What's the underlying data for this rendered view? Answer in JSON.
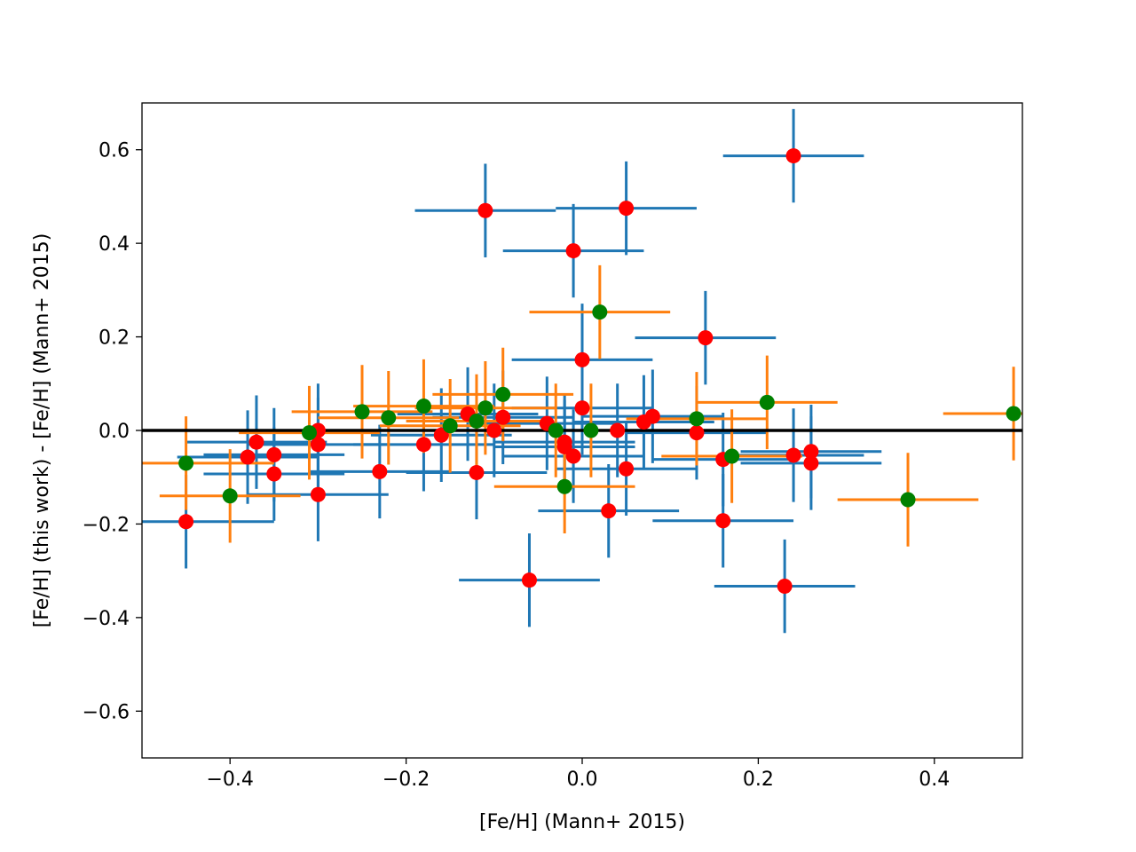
{
  "chart_data": {
    "type": "scatter",
    "title": "",
    "xlabel": "[Fe/H] (Mann+ 2015)",
    "ylabel": "[Fe/H] (this work) - [Fe/H] (Mann+ 2015)",
    "xlim": [
      -0.5,
      0.5
    ],
    "ylim": [
      -0.7,
      0.7
    ],
    "xticks": [
      -0.4,
      -0.2,
      0.0,
      0.2,
      0.4
    ],
    "xtick_labels": [
      "−0.4",
      "−0.2",
      "0.0",
      "0.2",
      "0.4"
    ],
    "yticks": [
      0.6,
      0.4,
      0.2,
      0.0,
      -0.2,
      -0.4,
      -0.6
    ],
    "ytick_labels": [
      "0.6",
      "0.4",
      "0.2",
      "0.0",
      "−0.2",
      "−0.4",
      "−0.6"
    ],
    "grid": false,
    "reference_line": {
      "y": 0.0,
      "color": "#000000"
    },
    "colors": {
      "blue_err": "#1f77b4",
      "orange_err": "#ff7f0e",
      "red_marker": "#ff0000",
      "green_marker": "#008000"
    },
    "series": [
      {
        "name": "red",
        "marker_color": "#ff0000",
        "errorbar_color": "#1f77b4",
        "points": [
          {
            "x": 0.24,
            "y": 0.587,
            "xerr": 0.08,
            "yerr": 0.1
          },
          {
            "x": -0.11,
            "y": 0.47,
            "xerr": 0.08,
            "yerr": 0.1
          },
          {
            "x": 0.05,
            "y": 0.475,
            "xerr": 0.08,
            "yerr": 0.1
          },
          {
            "x": -0.01,
            "y": 0.384,
            "xerr": 0.08,
            "yerr": 0.1
          },
          {
            "x": 0.14,
            "y": 0.198,
            "xerr": 0.08,
            "yerr": 0.1
          },
          {
            "x": 0.0,
            "y": 0.151,
            "xerr": 0.08,
            "yerr": 0.12
          },
          {
            "x": -0.3,
            "y": 0.0,
            "xerr": 0.08,
            "yerr": 0.1
          },
          {
            "x": -0.37,
            "y": -0.025,
            "xerr": 0.08,
            "yerr": 0.1
          },
          {
            "x": -0.38,
            "y": -0.057,
            "xerr": 0.08,
            "yerr": 0.1
          },
          {
            "x": -0.35,
            "y": -0.052,
            "xerr": 0.08,
            "yerr": 0.1
          },
          {
            "x": -0.35,
            "y": -0.093,
            "xerr": 0.08,
            "yerr": 0.1
          },
          {
            "x": -0.3,
            "y": -0.03,
            "xerr": 0.08,
            "yerr": 0.1
          },
          {
            "x": -0.3,
            "y": -0.137,
            "xerr": 0.08,
            "yerr": 0.1
          },
          {
            "x": -0.45,
            "y": -0.195,
            "xerr": 0.1,
            "yerr": 0.1
          },
          {
            "x": -0.23,
            "y": -0.088,
            "xerr": 0.08,
            "yerr": 0.1
          },
          {
            "x": -0.18,
            "y": -0.03,
            "xerr": 0.08,
            "yerr": 0.1
          },
          {
            "x": -0.16,
            "y": -0.01,
            "xerr": 0.08,
            "yerr": 0.1
          },
          {
            "x": -0.13,
            "y": 0.035,
            "xerr": 0.08,
            "yerr": 0.1
          },
          {
            "x": -0.12,
            "y": -0.09,
            "xerr": 0.08,
            "yerr": 0.1
          },
          {
            "x": -0.1,
            "y": 0.0,
            "xerr": 0.08,
            "yerr": 0.1
          },
          {
            "x": -0.09,
            "y": 0.028,
            "xerr": 0.08,
            "yerr": 0.1
          },
          {
            "x": -0.04,
            "y": 0.015,
            "xerr": 0.08,
            "yerr": 0.1
          },
          {
            "x": -0.02,
            "y": -0.025,
            "xerr": 0.08,
            "yerr": 0.1
          },
          {
            "x": -0.02,
            "y": -0.035,
            "xerr": 0.08,
            "yerr": 0.1
          },
          {
            "x": -0.01,
            "y": -0.055,
            "xerr": 0.08,
            "yerr": 0.1
          },
          {
            "x": 0.0,
            "y": 0.048,
            "xerr": 0.08,
            "yerr": 0.1
          },
          {
            "x": 0.03,
            "y": -0.172,
            "xerr": 0.08,
            "yerr": 0.1
          },
          {
            "x": 0.04,
            "y": 0.0,
            "xerr": 0.08,
            "yerr": 0.1
          },
          {
            "x": 0.05,
            "y": -0.082,
            "xerr": 0.08,
            "yerr": 0.1
          },
          {
            "x": 0.07,
            "y": 0.018,
            "xerr": 0.08,
            "yerr": 0.1
          },
          {
            "x": 0.08,
            "y": 0.03,
            "xerr": 0.08,
            "yerr": 0.1
          },
          {
            "x": -0.06,
            "y": -0.32,
            "xerr": 0.08,
            "yerr": 0.1
          },
          {
            "x": 0.13,
            "y": -0.005,
            "xerr": 0.08,
            "yerr": 0.1
          },
          {
            "x": 0.16,
            "y": -0.062,
            "xerr": 0.08,
            "yerr": 0.1
          },
          {
            "x": 0.16,
            "y": -0.193,
            "xerr": 0.08,
            "yerr": 0.1
          },
          {
            "x": 0.23,
            "y": -0.333,
            "xerr": 0.08,
            "yerr": 0.1
          },
          {
            "x": 0.24,
            "y": -0.053,
            "xerr": 0.08,
            "yerr": 0.1
          },
          {
            "x": 0.26,
            "y": -0.045,
            "xerr": 0.08,
            "yerr": 0.1
          },
          {
            "x": 0.26,
            "y": -0.07,
            "xerr": 0.08,
            "yerr": 0.1
          }
        ]
      },
      {
        "name": "green",
        "marker_color": "#008000",
        "errorbar_color": "#ff7f0e",
        "points": [
          {
            "x": -0.45,
            "y": -0.07,
            "xerr": 0.1,
            "yerr": 0.1
          },
          {
            "x": -0.4,
            "y": -0.14,
            "xerr": 0.08,
            "yerr": 0.1
          },
          {
            "x": -0.31,
            "y": -0.005,
            "xerr": 0.08,
            "yerr": 0.1
          },
          {
            "x": -0.25,
            "y": 0.04,
            "xerr": 0.08,
            "yerr": 0.1
          },
          {
            "x": -0.22,
            "y": 0.027,
            "xerr": 0.08,
            "yerr": 0.1
          },
          {
            "x": -0.18,
            "y": 0.052,
            "xerr": 0.08,
            "yerr": 0.1
          },
          {
            "x": -0.15,
            "y": 0.01,
            "xerr": 0.08,
            "yerr": 0.1
          },
          {
            "x": -0.12,
            "y": 0.02,
            "xerr": 0.08,
            "yerr": 0.1
          },
          {
            "x": -0.11,
            "y": 0.048,
            "xerr": 0.08,
            "yerr": 0.1
          },
          {
            "x": -0.09,
            "y": 0.077,
            "xerr": 0.08,
            "yerr": 0.1
          },
          {
            "x": -0.03,
            "y": 0.0,
            "xerr": 0.08,
            "yerr": 0.1
          },
          {
            "x": -0.02,
            "y": -0.12,
            "xerr": 0.08,
            "yerr": 0.1
          },
          {
            "x": 0.01,
            "y": 0.0,
            "xerr": 0.08,
            "yerr": 0.1
          },
          {
            "x": 0.02,
            "y": 0.253,
            "xerr": 0.08,
            "yerr": 0.1
          },
          {
            "x": 0.13,
            "y": 0.025,
            "xerr": 0.08,
            "yerr": 0.1
          },
          {
            "x": 0.17,
            "y": -0.055,
            "xerr": 0.08,
            "yerr": 0.1
          },
          {
            "x": 0.21,
            "y": 0.06,
            "xerr": 0.08,
            "yerr": 0.1
          },
          {
            "x": 0.37,
            "y": -0.148,
            "xerr": 0.08,
            "yerr": 0.1
          },
          {
            "x": 0.49,
            "y": 0.036,
            "xerr": 0.08,
            "yerr": 0.1
          }
        ]
      }
    ]
  }
}
